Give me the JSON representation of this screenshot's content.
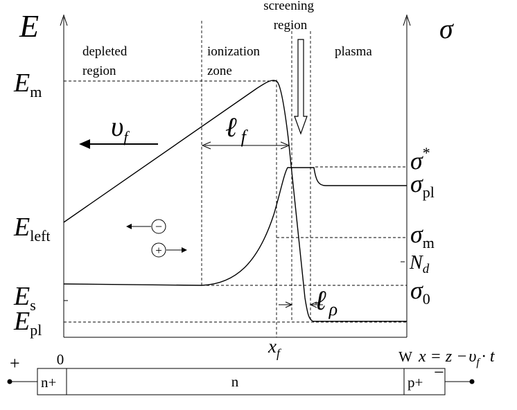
{
  "regions": {
    "depleted": [
      "depleted",
      "region"
    ],
    "ionization": [
      "ionization",
      "zone"
    ],
    "screening": [
      "screening",
      "region"
    ],
    "plasma": "plasma"
  },
  "left_axis": {
    "symbol": "E",
    "ticks": [
      {
        "main": "E",
        "sub": "m"
      },
      {
        "main": "E",
        "sub": "left"
      },
      {
        "main": "E",
        "sub": "s"
      },
      {
        "main": "E",
        "sub": "pl"
      }
    ]
  },
  "right_axis": {
    "symbol": "σ",
    "ticks": [
      {
        "main": "σ",
        "sup": "*"
      },
      {
        "main": "σ",
        "sub": "pl"
      },
      {
        "main": "σ",
        "sub": "m"
      },
      {
        "main": "N",
        "sub": "d"
      },
      {
        "main": "σ",
        "sub": "0"
      }
    ]
  },
  "annotations": {
    "velocity": {
      "main": "υ",
      "sub": "f"
    },
    "front_width": {
      "main": "ℓ",
      "sub": "f"
    },
    "screening_length": {
      "main": "ℓ",
      "sub": "ρ"
    },
    "electron": "−",
    "hole": "+"
  },
  "x_axis": {
    "origin": "0",
    "front": {
      "main": "x",
      "sub": "f"
    },
    "end": "W",
    "formula": {
      "lhs": "x = z −",
      "v": "υ",
      "vsub": "f",
      "rhs": "· t"
    }
  },
  "device": {
    "left_contact": "n+",
    "middle": "n",
    "right_contact": "p+",
    "left_polarity": "+",
    "right_polarity": "−"
  }
}
